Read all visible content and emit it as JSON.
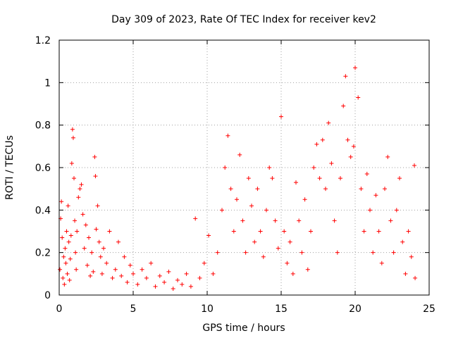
{
  "chart_data": {
    "type": "scatter",
    "title": "Day 309 of 2023, Rate Of TEC Index for receiver kev2",
    "xlabel": "GPS time / hours",
    "ylabel": "ROTI / TECUs",
    "xlim": [
      0,
      25
    ],
    "ylim": [
      0,
      1.2
    ],
    "xticks": [
      "0",
      "5",
      "10",
      "15",
      "20",
      "25"
    ],
    "yticks": [
      "0",
      "0.2",
      "0.4",
      "0.6",
      "0.8",
      "1",
      "1.2"
    ],
    "grid": true,
    "marker": "plus",
    "color": "#ff0000",
    "series": [
      {
        "points": [
          [
            0.05,
            0.12
          ],
          [
            0.1,
            0.36
          ],
          [
            0.15,
            0.44
          ],
          [
            0.2,
            0.27
          ],
          [
            0.25,
            0.08
          ],
          [
            0.3,
            0.18
          ],
          [
            0.35,
            0.05
          ],
          [
            0.4,
            0.22
          ],
          [
            0.45,
            0.15
          ],
          [
            0.5,
            0.3
          ],
          [
            0.55,
            0.1
          ],
          [
            0.6,
            0.42
          ],
          [
            0.65,
            0.25
          ],
          [
            0.7,
            0.07
          ],
          [
            0.75,
            0.17
          ],
          [
            0.8,
            0.28
          ],
          [
            0.85,
            0.62
          ],
          [
            0.9,
            0.78
          ],
          [
            0.95,
            0.74
          ],
          [
            1.0,
            0.55
          ],
          [
            1.05,
            0.35
          ],
          [
            1.1,
            0.2
          ],
          [
            1.15,
            0.12
          ],
          [
            1.2,
            0.3
          ],
          [
            1.3,
            0.46
          ],
          [
            1.4,
            0.5
          ],
          [
            1.5,
            0.52
          ],
          [
            1.6,
            0.38
          ],
          [
            1.7,
            0.22
          ],
          [
            1.8,
            0.33
          ],
          [
            1.9,
            0.14
          ],
          [
            2.0,
            0.27
          ],
          [
            2.1,
            0.09
          ],
          [
            2.2,
            0.2
          ],
          [
            2.3,
            0.11
          ],
          [
            2.4,
            0.65
          ],
          [
            2.45,
            0.56
          ],
          [
            2.5,
            0.31
          ],
          [
            2.6,
            0.42
          ],
          [
            2.7,
            0.25
          ],
          [
            2.8,
            0.18
          ],
          [
            2.9,
            0.1
          ],
          [
            3.0,
            0.22
          ],
          [
            3.2,
            0.15
          ],
          [
            3.4,
            0.3
          ],
          [
            3.6,
            0.08
          ],
          [
            3.8,
            0.12
          ],
          [
            4.0,
            0.25
          ],
          [
            4.2,
            0.09
          ],
          [
            4.4,
            0.18
          ],
          [
            4.6,
            0.06
          ],
          [
            4.8,
            0.14
          ],
          [
            5.0,
            0.1
          ],
          [
            5.3,
            0.05
          ],
          [
            5.6,
            0.12
          ],
          [
            5.9,
            0.08
          ],
          [
            6.2,
            0.15
          ],
          [
            6.5,
            0.04
          ],
          [
            6.8,
            0.09
          ],
          [
            7.1,
            0.06
          ],
          [
            7.4,
            0.11
          ],
          [
            7.7,
            0.03
          ],
          [
            8.0,
            0.07
          ],
          [
            8.3,
            0.05
          ],
          [
            8.6,
            0.1
          ],
          [
            8.9,
            0.04
          ],
          [
            9.2,
            0.36
          ],
          [
            9.5,
            0.08
          ],
          [
            9.8,
            0.15
          ],
          [
            10.1,
            0.28
          ],
          [
            10.4,
            0.1
          ],
          [
            10.7,
            0.2
          ],
          [
            11.0,
            0.4
          ],
          [
            11.2,
            0.6
          ],
          [
            11.4,
            0.75
          ],
          [
            11.6,
            0.5
          ],
          [
            11.8,
            0.3
          ],
          [
            12.0,
            0.45
          ],
          [
            12.2,
            0.66
          ],
          [
            12.4,
            0.35
          ],
          [
            12.6,
            0.2
          ],
          [
            12.8,
            0.55
          ],
          [
            13.0,
            0.42
          ],
          [
            13.2,
            0.25
          ],
          [
            13.4,
            0.5
          ],
          [
            13.6,
            0.3
          ],
          [
            13.8,
            0.18
          ],
          [
            14.0,
            0.4
          ],
          [
            14.2,
            0.6
          ],
          [
            14.4,
            0.55
          ],
          [
            14.6,
            0.35
          ],
          [
            14.8,
            0.22
          ],
          [
            15.0,
            0.84
          ],
          [
            15.2,
            0.3
          ],
          [
            15.4,
            0.15
          ],
          [
            15.6,
            0.25
          ],
          [
            15.8,
            0.1
          ],
          [
            16.0,
            0.53
          ],
          [
            16.2,
            0.35
          ],
          [
            16.4,
            0.2
          ],
          [
            16.6,
            0.45
          ],
          [
            16.8,
            0.12
          ],
          [
            17.0,
            0.3
          ],
          [
            17.2,
            0.6
          ],
          [
            17.4,
            0.71
          ],
          [
            17.6,
            0.55
          ],
          [
            17.8,
            0.73
          ],
          [
            18.0,
            0.5
          ],
          [
            18.2,
            0.81
          ],
          [
            18.4,
            0.62
          ],
          [
            18.6,
            0.35
          ],
          [
            18.8,
            0.2
          ],
          [
            19.0,
            0.55
          ],
          [
            19.2,
            0.89
          ],
          [
            19.35,
            1.03
          ],
          [
            19.5,
            0.73
          ],
          [
            19.7,
            0.65
          ],
          [
            19.9,
            0.7
          ],
          [
            20.0,
            1.07
          ],
          [
            20.2,
            0.93
          ],
          [
            20.4,
            0.5
          ],
          [
            20.6,
            0.3
          ],
          [
            20.8,
            0.57
          ],
          [
            21.0,
            0.4
          ],
          [
            21.2,
            0.2
          ],
          [
            21.4,
            0.47
          ],
          [
            21.6,
            0.3
          ],
          [
            21.8,
            0.15
          ],
          [
            22.0,
            0.5
          ],
          [
            22.2,
            0.65
          ],
          [
            22.4,
            0.35
          ],
          [
            22.6,
            0.2
          ],
          [
            22.8,
            0.4
          ],
          [
            23.0,
            0.55
          ],
          [
            23.2,
            0.25
          ],
          [
            23.4,
            0.1
          ],
          [
            23.6,
            0.3
          ],
          [
            23.8,
            0.18
          ],
          [
            24.0,
            0.61
          ],
          [
            24.05,
            0.08
          ]
        ]
      }
    ]
  }
}
